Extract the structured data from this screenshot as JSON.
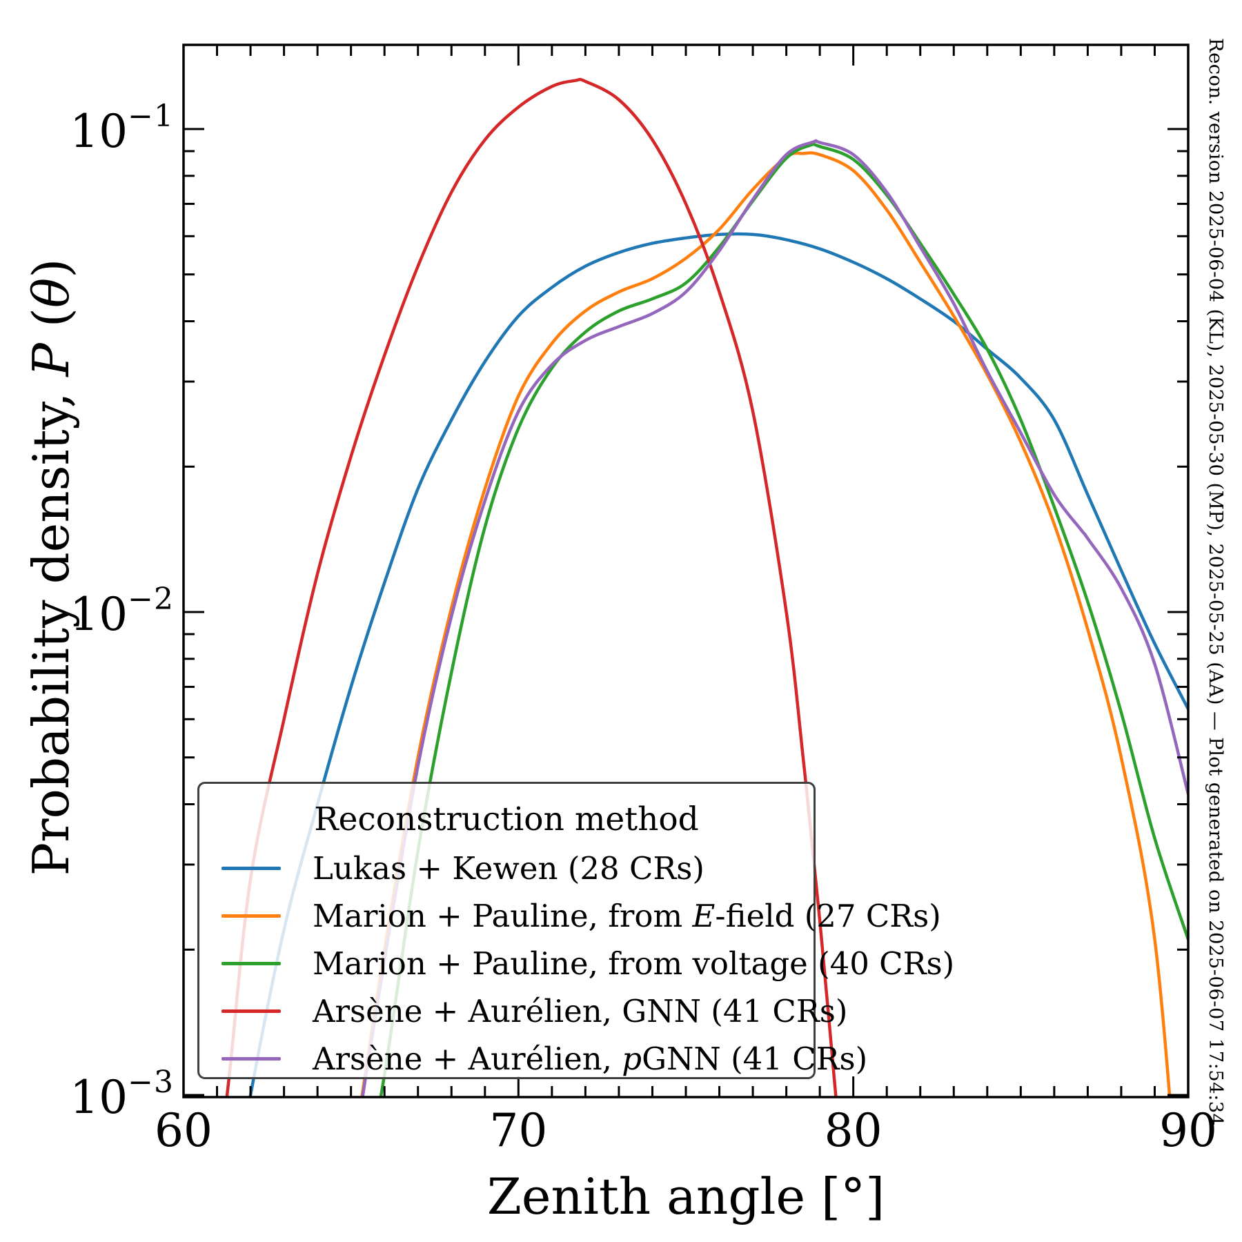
{
  "figure": {
    "background": "#ffffff",
    "right_caption": "Recon. version 2025-06-04 (KL), 2025-05-30 (MP), 2025-05-25 (AA) — Plot generated on 2025-06-07 17:54:34"
  },
  "chart_data": {
    "type": "line",
    "title": "",
    "xlabel": "Zenith angle [°]",
    "ylabel": "Probability density, 𝒫(θ)",
    "ylabel_parts": [
      {
        "t": "Probability density, "
      },
      {
        "t": "P",
        "i": true
      },
      {
        "t": " ("
      },
      {
        "t": "θ",
        "i": true
      },
      {
        "t": ")"
      }
    ],
    "xlim": [
      60,
      90
    ],
    "ylim": [
      0.001,
      0.1495
    ],
    "yscale": "log",
    "grid": false,
    "x_major_ticks": [
      60,
      70,
      80,
      90
    ],
    "x_minor_tick_step": 1,
    "y_major_ticks": [
      {
        "v": 0.1,
        "base": "10",
        "exp": "−1"
      },
      {
        "v": 0.01,
        "base": "10",
        "exp": "−2"
      },
      {
        "v": 0.001,
        "base": "10",
        "exp": "−3"
      }
    ],
    "legend": {
      "title": "Reconstruction method",
      "position": "lower left",
      "entries": [
        {
          "color": "#1f77b4",
          "parts": [
            {
              "t": "Lukas + Kewen (28 CRs)"
            }
          ]
        },
        {
          "color": "#ff7f0e",
          "parts": [
            {
              "t": "Marion + Pauline, from "
            },
            {
              "t": "E",
              "i": true
            },
            {
              "t": "-field (27 CRs)"
            }
          ]
        },
        {
          "color": "#2ca02c",
          "parts": [
            {
              "t": "Marion + Pauline, from voltage (40 CRs)"
            }
          ]
        },
        {
          "color": "#d62728",
          "parts": [
            {
              "t": "Arsène + Aurélien, GNN (41 CRs)"
            }
          ]
        },
        {
          "color": "#9467bd",
          "parts": [
            {
              "t": "Arsène + Aurélien, "
            },
            {
              "t": "p",
              "i": true
            },
            {
              "t": "GNN (41 CRs)"
            }
          ]
        }
      ]
    },
    "series": [
      {
        "name": "Lukas + Kewen (28 CRs)",
        "color": "#1f77b4",
        "points": [
          [
            61,
            0.0004
          ],
          [
            62,
            0.001
          ],
          [
            63,
            0.0022
          ],
          [
            64,
            0.004
          ],
          [
            65,
            0.007
          ],
          [
            66,
            0.0115
          ],
          [
            67,
            0.018
          ],
          [
            68,
            0.025
          ],
          [
            69,
            0.033
          ],
          [
            70,
            0.041
          ],
          [
            71,
            0.047
          ],
          [
            72,
            0.052
          ],
          [
            73,
            0.0555
          ],
          [
            74,
            0.058
          ],
          [
            75,
            0.0595
          ],
          [
            76,
            0.0605
          ],
          [
            77,
            0.0605
          ],
          [
            78,
            0.059
          ],
          [
            79,
            0.0565
          ],
          [
            80,
            0.053
          ],
          [
            81,
            0.049
          ],
          [
            82,
            0.0445
          ],
          [
            83,
            0.04
          ],
          [
            84,
            0.035
          ],
          [
            85,
            0.0305
          ],
          [
            86,
            0.025
          ],
          [
            87,
            0.0175
          ],
          [
            88,
            0.0122
          ],
          [
            89,
            0.0086
          ],
          [
            90,
            0.0063
          ]
        ]
      },
      {
        "name": "Marion + Pauline, from E-field (27 CRs)",
        "color": "#ff7f0e",
        "points": [
          [
            65,
            0.0007
          ],
          [
            66,
            0.002
          ],
          [
            67,
            0.005
          ],
          [
            68,
            0.0102
          ],
          [
            69,
            0.018
          ],
          [
            70,
            0.028
          ],
          [
            71,
            0.036
          ],
          [
            72,
            0.042
          ],
          [
            73,
            0.046
          ],
          [
            74,
            0.049
          ],
          [
            75,
            0.054
          ],
          [
            76,
            0.062
          ],
          [
            77,
            0.075
          ],
          [
            78,
            0.0875
          ],
          [
            78.5,
            0.089
          ],
          [
            79,
            0.0885
          ],
          [
            80,
            0.082
          ],
          [
            81,
            0.068
          ],
          [
            82,
            0.053
          ],
          [
            83,
            0.041
          ],
          [
            84,
            0.031
          ],
          [
            85,
            0.0225
          ],
          [
            86,
            0.0152
          ],
          [
            87,
            0.0092
          ],
          [
            88,
            0.005
          ],
          [
            89,
            0.0021
          ],
          [
            89.7,
            0.0006
          ]
        ]
      },
      {
        "name": "Marion + Pauline, from voltage (40 CRs)",
        "color": "#2ca02c",
        "points": [
          [
            65.3,
            0.0006
          ],
          [
            66,
            0.0011
          ],
          [
            67,
            0.0032
          ],
          [
            68,
            0.0075
          ],
          [
            69,
            0.015
          ],
          [
            70,
            0.024
          ],
          [
            71,
            0.032
          ],
          [
            72,
            0.038
          ],
          [
            73,
            0.042
          ],
          [
            74,
            0.0445
          ],
          [
            75,
            0.048
          ],
          [
            76,
            0.057
          ],
          [
            77,
            0.071
          ],
          [
            78,
            0.087
          ],
          [
            78.7,
            0.0925
          ],
          [
            79,
            0.092
          ],
          [
            80,
            0.0865
          ],
          [
            81,
            0.073
          ],
          [
            82,
            0.058
          ],
          [
            83,
            0.0455
          ],
          [
            84,
            0.035
          ],
          [
            85,
            0.025
          ],
          [
            86,
            0.0165
          ],
          [
            87,
            0.0105
          ],
          [
            88,
            0.0062
          ],
          [
            89,
            0.0034
          ],
          [
            90,
            0.0021
          ]
        ]
      },
      {
        "name": "Arsène + Aurélien, GNN (41 CRs)",
        "color": "#d62728",
        "points": [
          [
            60.7,
            0.0005
          ],
          [
            61.3,
            0.001
          ],
          [
            62,
            0.0028
          ],
          [
            63,
            0.006
          ],
          [
            64,
            0.012
          ],
          [
            65,
            0.021
          ],
          [
            66,
            0.034
          ],
          [
            67,
            0.052
          ],
          [
            68,
            0.074
          ],
          [
            69,
            0.095
          ],
          [
            70,
            0.111
          ],
          [
            71,
            0.1225
          ],
          [
            71.7,
            0.126
          ],
          [
            72,
            0.1255
          ],
          [
            73,
            0.115
          ],
          [
            74,
            0.095
          ],
          [
            75,
            0.07
          ],
          [
            76,
            0.046
          ],
          [
            77,
            0.026
          ],
          [
            78,
            0.01
          ],
          [
            78.5,
            0.005
          ],
          [
            79,
            0.0023
          ],
          [
            79.6,
            0.0008
          ]
        ]
      },
      {
        "name": "Arsène + Aurélien, pGNN (41 CRs)",
        "color": "#9467bd",
        "points": [
          [
            65,
            0.0007
          ],
          [
            66,
            0.0019
          ],
          [
            67,
            0.0048
          ],
          [
            68,
            0.0098
          ],
          [
            69,
            0.017
          ],
          [
            70,
            0.026
          ],
          [
            71,
            0.0325
          ],
          [
            72,
            0.0365
          ],
          [
            73,
            0.039
          ],
          [
            74,
            0.0415
          ],
          [
            75,
            0.046
          ],
          [
            76,
            0.056
          ],
          [
            77,
            0.0715
          ],
          [
            78,
            0.0885
          ],
          [
            78.8,
            0.094
          ],
          [
            79,
            0.0938
          ],
          [
            80,
            0.0885
          ],
          [
            81,
            0.074
          ],
          [
            82,
            0.057
          ],
          [
            83,
            0.0435
          ],
          [
            84,
            0.0315
          ],
          [
            85,
            0.0235
          ],
          [
            86,
            0.0175
          ],
          [
            86.8,
            0.0148
          ],
          [
            87,
            0.0142
          ],
          [
            88,
            0.0112
          ],
          [
            89,
            0.0078
          ],
          [
            90,
            0.0042
          ]
        ]
      }
    ]
  }
}
